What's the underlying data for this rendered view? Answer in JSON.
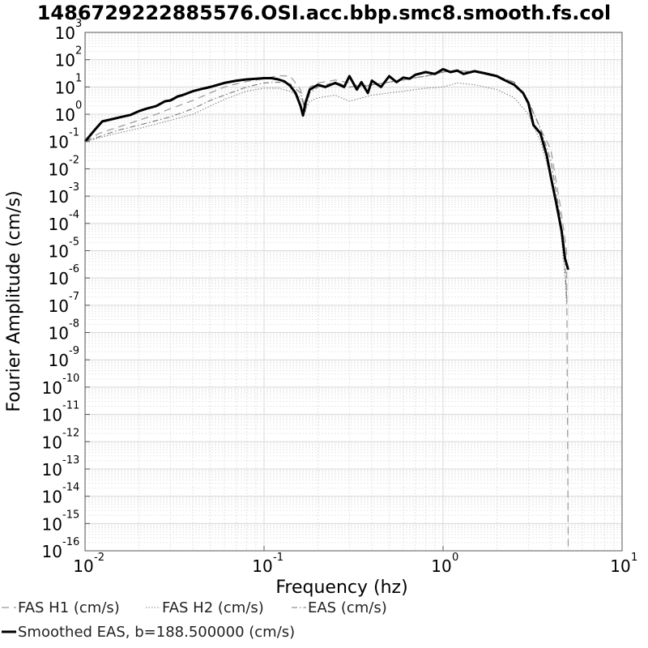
{
  "chart_data": {
    "type": "line",
    "title": "1486729222885576.OSI.acc.bbp.smc8.smooth.fs.col",
    "xlabel": "Frequency (hz)",
    "ylabel": "Fourier Amplitude (cm/s)",
    "x_scale": "log",
    "y_scale": "log",
    "xlim": [
      0.01,
      10
    ],
    "ylim": [
      1e-16,
      1000
    ],
    "x_tick_base": "10",
    "x_tick_exponents": [
      "-2",
      "-1",
      "0",
      "1"
    ],
    "y_tick_base": "10",
    "y_tick_exponents": [
      "3",
      "2",
      "1",
      "0",
      "-1",
      "-2",
      "-3",
      "-4",
      "-5",
      "-6",
      "-7",
      "-8",
      "-9",
      "-10",
      "-11",
      "-12",
      "-13",
      "-14",
      "-15",
      "-16"
    ],
    "grid": true,
    "legend_position": "below",
    "series": [
      {
        "name": "FAS H1 (cm/s)",
        "style": "dashed",
        "color": "#999999",
        "x": [
          0.01,
          0.012,
          0.015,
          0.02,
          0.025,
          0.03,
          0.04,
          0.05,
          0.06,
          0.07,
          0.08,
          0.1,
          0.12,
          0.14,
          0.16,
          0.17,
          0.18,
          0.2,
          0.25,
          0.3,
          0.35,
          0.4,
          0.5,
          0.6,
          0.7,
          0.8,
          1.0,
          1.2,
          1.5,
          2.0,
          2.5,
          3.0,
          3.5,
          4.0,
          4.5,
          4.9,
          5.0
        ],
        "y": [
          0.1,
          0.2,
          0.32,
          0.6,
          1.0,
          1.6,
          3.2,
          6,
          10,
          13,
          16,
          20,
          26,
          25,
          8,
          1.2,
          10,
          14,
          18,
          14,
          10,
          12,
          15,
          18,
          22,
          25,
          35,
          40,
          35,
          25,
          15,
          3,
          0.3,
          0.05,
          0.0005,
          1e-05,
          1e-16
        ]
      },
      {
        "name": "FAS H2 (cm/s)",
        "style": "dotted",
        "color": "#888888",
        "x": [
          0.01,
          0.015,
          0.02,
          0.03,
          0.04,
          0.05,
          0.06,
          0.08,
          0.1,
          0.12,
          0.14,
          0.16,
          0.17,
          0.18,
          0.2,
          0.25,
          0.3,
          0.4,
          0.5,
          0.6,
          0.7,
          0.8,
          1.0,
          1.2,
          1.5,
          2.0,
          2.5,
          3.0,
          3.5,
          4.0,
          4.5,
          4.8,
          4.9
        ],
        "y": [
          0.1,
          0.2,
          0.3,
          0.6,
          1.0,
          2.0,
          3.5,
          7,
          9,
          9,
          7,
          4,
          1.5,
          3,
          4,
          5,
          3,
          5,
          6,
          7,
          8,
          9,
          10,
          14,
          12,
          8,
          4,
          1,
          0.1,
          0.005,
          0.0001,
          1e-06,
          1e-07
        ]
      },
      {
        "name": "EAS (cm/s)",
        "style": "dashdot",
        "color": "#777777",
        "x": [
          0.01,
          0.015,
          0.02,
          0.03,
          0.04,
          0.05,
          0.06,
          0.08,
          0.1,
          0.12,
          0.14,
          0.16,
          0.17,
          0.18,
          0.2,
          0.25,
          0.3,
          0.4,
          0.5,
          0.6,
          0.7,
          0.8,
          1.0,
          1.2,
          1.5,
          2.0,
          2.5,
          3.0,
          3.5,
          4.0,
          4.5,
          4.8,
          4.9
        ],
        "y": [
          0.1,
          0.25,
          0.4,
          0.8,
          1.6,
          3.2,
          5,
          10,
          14,
          15,
          13,
          6,
          1.5,
          6,
          10,
          15,
          10,
          12,
          15,
          18,
          22,
          25,
          35,
          40,
          35,
          25,
          15,
          3,
          0.3,
          0.02,
          0.0002,
          3e-06,
          2e-07
        ]
      },
      {
        "name": "Smoothed EAS, b=188.500000 (cm/s)",
        "style": "solid",
        "color": "#000000",
        "x": [
          0.01,
          0.0115,
          0.0125,
          0.014,
          0.016,
          0.018,
          0.02,
          0.022,
          0.025,
          0.028,
          0.03,
          0.033,
          0.035,
          0.04,
          0.045,
          0.05,
          0.06,
          0.07,
          0.08,
          0.09,
          0.1,
          0.11,
          0.12,
          0.13,
          0.14,
          0.15,
          0.16,
          0.165,
          0.17,
          0.18,
          0.2,
          0.22,
          0.25,
          0.28,
          0.3,
          0.33,
          0.35,
          0.38,
          0.4,
          0.45,
          0.5,
          0.55,
          0.6,
          0.65,
          0.7,
          0.8,
          0.9,
          1.0,
          1.1,
          1.2,
          1.3,
          1.5,
          1.7,
          2.0,
          2.2,
          2.5,
          2.8,
          3.0,
          3.2,
          3.5,
          3.8,
          4.0,
          4.3,
          4.6,
          4.8,
          5.0
        ],
        "y": [
          0.1,
          0.3,
          0.55,
          0.65,
          0.8,
          0.95,
          1.3,
          1.6,
          2.0,
          3.0,
          3.2,
          4.5,
          5.0,
          7.0,
          8.5,
          10,
          14,
          17,
          19,
          20,
          21,
          21,
          19,
          16,
          11,
          6,
          2.0,
          0.9,
          2.5,
          8,
          12,
          10,
          14,
          10,
          25,
          8,
          15,
          6,
          17,
          10,
          25,
          15,
          22,
          20,
          28,
          35,
          30,
          45,
          35,
          40,
          30,
          38,
          32,
          25,
          18,
          12,
          6,
          2.5,
          0.4,
          0.2,
          0.03,
          0.005,
          0.0005,
          5e-05,
          5e-06,
          2e-06
        ]
      }
    ]
  }
}
